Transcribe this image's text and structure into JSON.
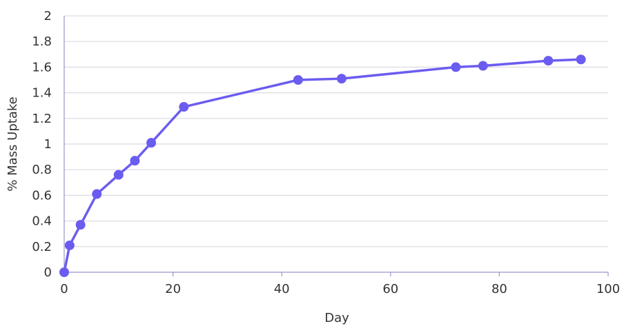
{
  "chart_data": {
    "type": "line",
    "title": "",
    "xlabel": "Day",
    "ylabel": "% Mass Uptake",
    "xlim": [
      0,
      100
    ],
    "ylim": [
      0,
      2
    ],
    "xticks": [
      0,
      20,
      40,
      60,
      80,
      100
    ],
    "yticks": [
      0,
      0.2,
      0.4,
      0.6,
      0.8,
      1,
      1.2,
      1.4,
      1.6,
      1.8,
      2
    ],
    "grid": true,
    "legend": "none",
    "series": [
      {
        "color": "#6b5cf0",
        "x": [
          0,
          1,
          3,
          6,
          10,
          13,
          16,
          22,
          43,
          51,
          72,
          77,
          89,
          95
        ],
        "y": [
          0,
          0.21,
          0.37,
          0.61,
          0.76,
          0.87,
          1.01,
          1.29,
          1.5,
          1.51,
          1.6,
          1.61,
          1.65,
          1.66
        ]
      }
    ],
    "colors": {
      "line": "#6b5cf0",
      "grid": "#d9d9e3",
      "axis": "#9b95c9",
      "text": "#333333"
    }
  }
}
